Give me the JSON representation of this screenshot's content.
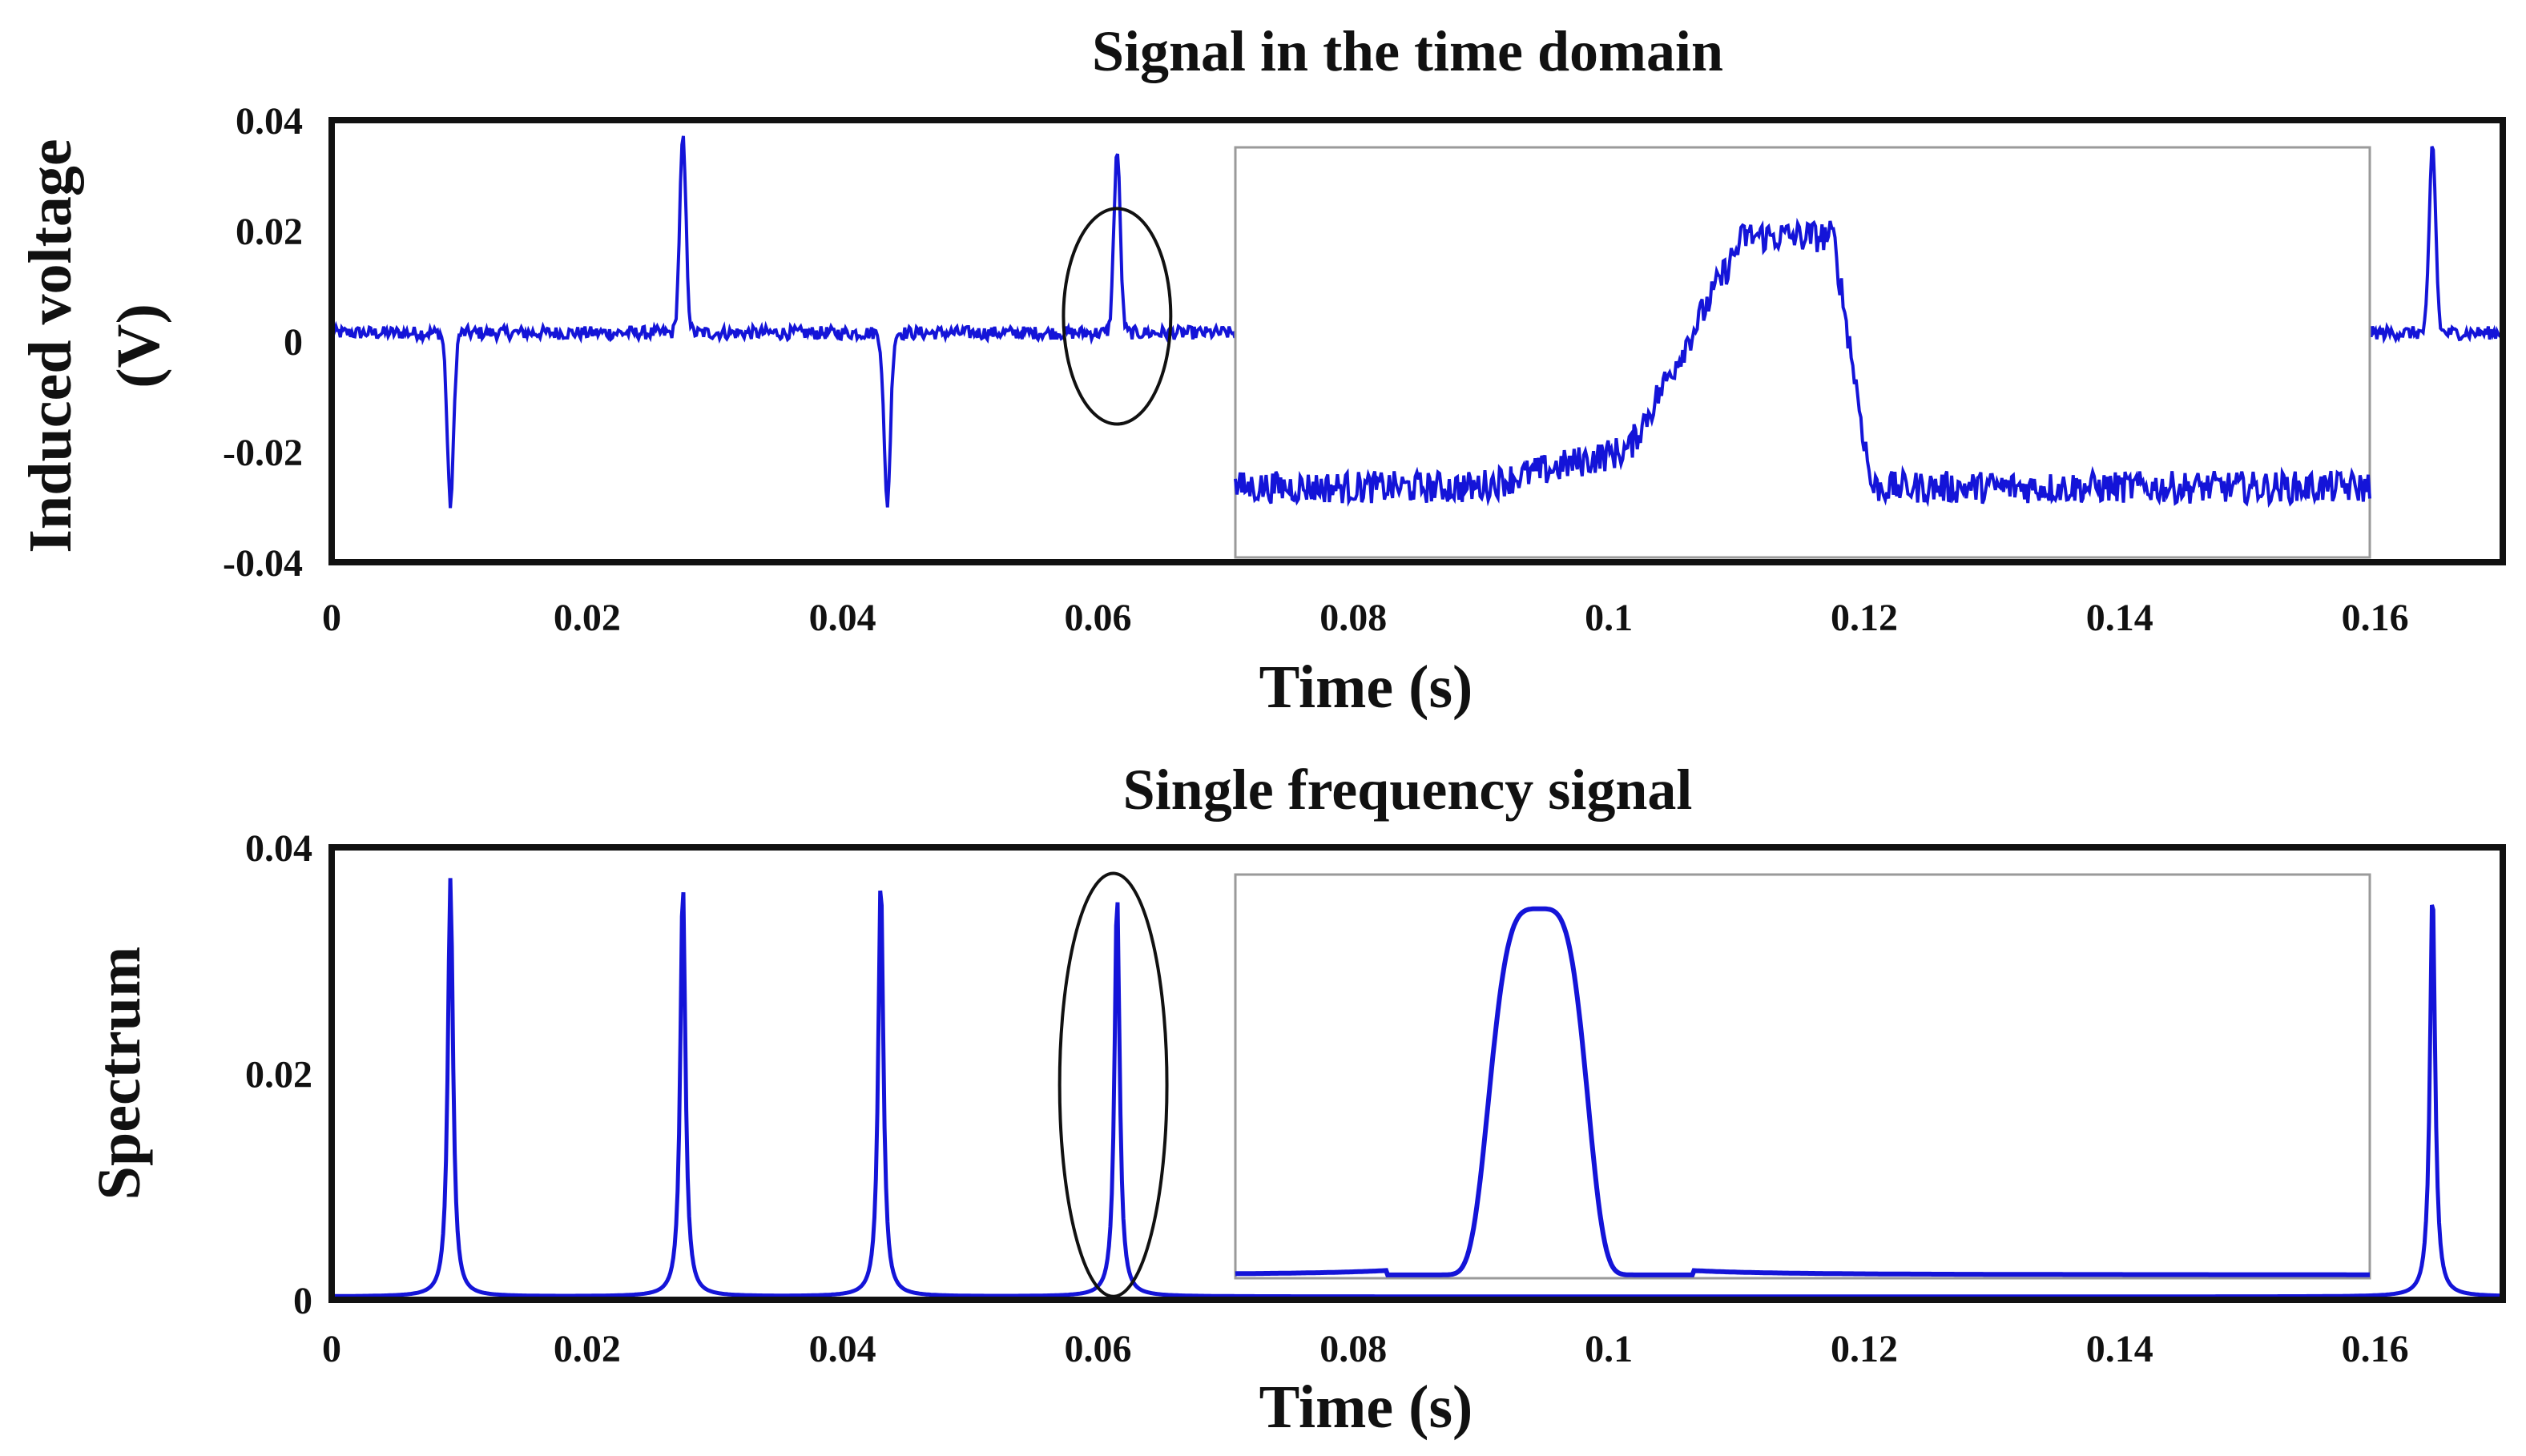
{
  "colors": {
    "signal": "#1414d8",
    "frame": "#111111",
    "inset_frame": "#9a9a9a",
    "ellipse": "#111111",
    "background": "#ffffff"
  },
  "chart_data": [
    {
      "type": "line",
      "title": "Signal in the time domain",
      "xlabel": "Time (s)",
      "ylabel": "Induced voltage (V)",
      "ylabel_lines": [
        "Induced voltage",
        "(V)"
      ],
      "xlim": [
        0,
        0.17
      ],
      "ylim": [
        -0.04,
        0.04
      ],
      "x_ticks": [
        0,
        0.02,
        0.04,
        0.06,
        0.08,
        0.1,
        0.12,
        0.14,
        0.16
      ],
      "x_tick_labels": [
        "0",
        "0.02",
        "0.04",
        "0.06",
        "0.08",
        "0.1",
        "0.12",
        "0.14",
        "0.16"
      ],
      "y_ticks": [
        0.04,
        0.02,
        0,
        -0.02,
        -0.04
      ],
      "y_tick_labels": [
        "0.04",
        "0.02",
        "0",
        "-0.02",
        "-0.04"
      ],
      "grid": false,
      "series": [
        {
          "baseline": 0.0015,
          "noise_amplitude": 0.0012,
          "peaks": [
            {
              "x": 0.0093,
              "y": -0.031
            },
            {
              "x": 0.0275,
              "y": 0.035
            },
            {
              "x": 0.0435,
              "y": -0.031
            },
            {
              "x": 0.0615,
              "y": 0.033
            },
            {
              "x": 0.1645,
              "y": 0.034
            }
          ]
        }
      ],
      "annotations": [
        {
          "type": "ellipse",
          "x": 0.0615,
          "y": 0.0045,
          "x_radius": 0.0042,
          "y_radius": 0.0195
        }
      ],
      "inset": {
        "description_kind": "zoom of circled pulse",
        "xlim": [
          0.0697,
          0.1585
        ],
        "ylim": [
          -0.0375,
          0.0385
        ],
        "pulse": {
          "baseline": -0.0245,
          "peak": 0.022,
          "rise_start": 0.1005,
          "plateau_start": 0.1095,
          "plateau_end": 0.1165,
          "fall_end": 0.1195
        },
        "noise_amplitude": 0.003
      }
    },
    {
      "type": "line",
      "title": "Single frequency signal",
      "xlabel": "Time (s)",
      "ylabel": "Spectrum",
      "xlim": [
        0,
        0.17
      ],
      "ylim": [
        0,
        0.04
      ],
      "x_ticks": [
        0,
        0.02,
        0.04,
        0.06,
        0.08,
        0.1,
        0.12,
        0.14,
        0.16
      ],
      "x_tick_labels": [
        "0",
        "0.02",
        "0.04",
        "0.06",
        "0.08",
        "0.1",
        "0.12",
        "0.14",
        "0.16"
      ],
      "y_ticks": [
        0.04,
        0.02,
        0
      ],
      "y_tick_labels": [
        "0.04",
        "0.02",
        "0"
      ],
      "grid": false,
      "series": [
        {
          "baseline": 0.0003,
          "peaks": [
            {
              "x": 0.0093,
              "y": 0.037
            },
            {
              "x": 0.0275,
              "y": 0.0367
            },
            {
              "x": 0.043,
              "y": 0.0372
            },
            {
              "x": 0.0615,
              "y": 0.0358
            },
            {
              "x": 0.1645,
              "y": 0.0363
            }
          ]
        }
      ],
      "annotations": [
        {
          "type": "ellipse",
          "x": 0.0612,
          "y": 0.019,
          "x_radius": 0.0042,
          "y_radius": 0.0187
        }
      ],
      "inset": {
        "description_kind": "zoom of circled peak",
        "xlim": [
          0.0697,
          0.1585
        ],
        "ylim": [
          0.0012,
          0.0378
        ],
        "pulse": {
          "baseline": 0.0015,
          "peak": 0.0347,
          "center": 0.0935
        }
      }
    }
  ]
}
